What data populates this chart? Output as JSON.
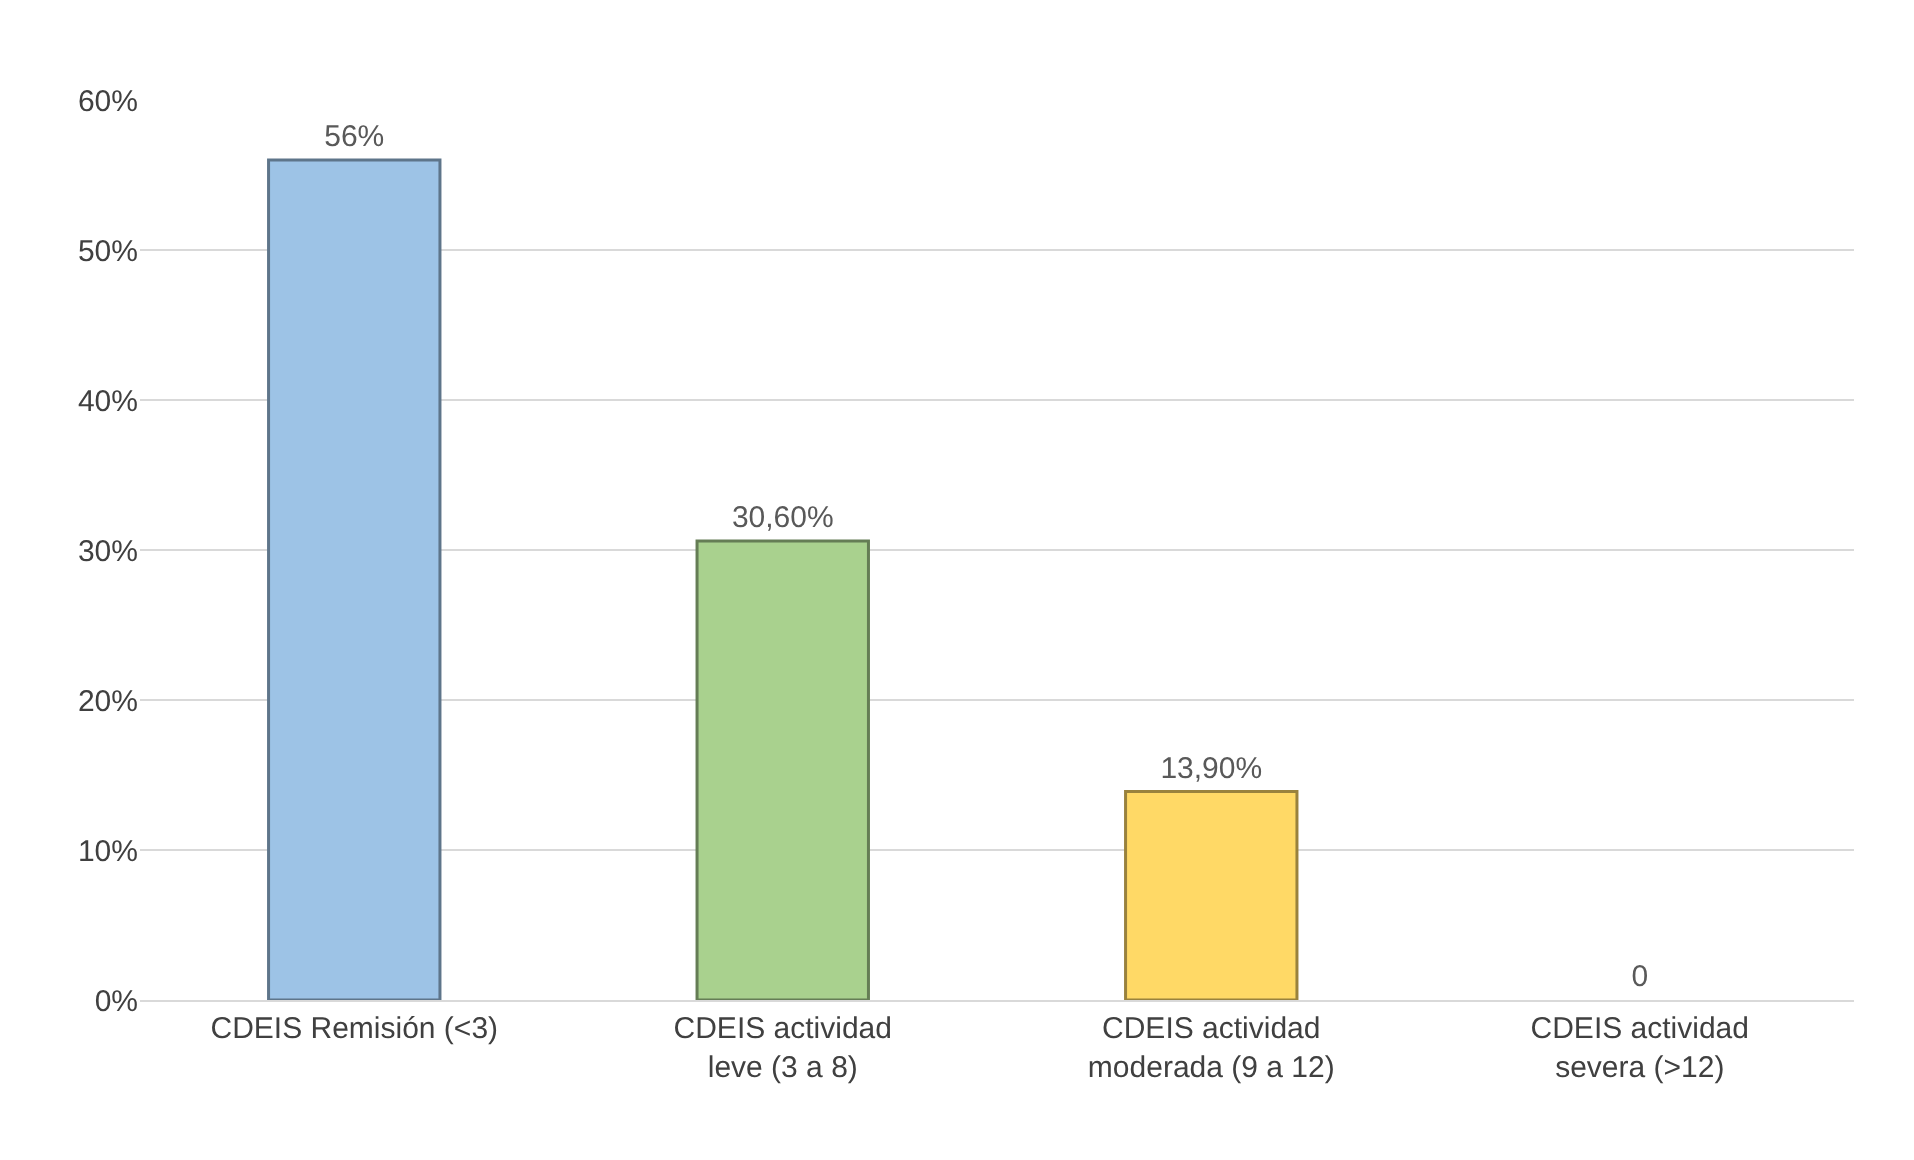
{
  "chart_data": {
    "type": "bar",
    "categories": [
      "CDEIS Remisión (<3)",
      "CDEIS actividad leve (3 a 8)",
      "CDEIS actividad moderada (9 a 12)",
      "CDEIS actividad severa (>12)"
    ],
    "values": [
      56,
      30.6,
      13.9,
      0
    ],
    "value_labels": [
      "56%",
      "30,60%",
      "13,90%",
      "0"
    ],
    "colors": [
      "#9dc3e6",
      "#a9d18e",
      "#ffd966",
      null
    ],
    "ylim": [
      0,
      60
    ],
    "yticks": [
      {
        "value": 0,
        "label": "0%"
      },
      {
        "value": 10,
        "label": "10%"
      },
      {
        "value": 20,
        "label": "20%"
      },
      {
        "value": 30,
        "label": "30%"
      },
      {
        "value": 40,
        "label": "40%"
      },
      {
        "value": 50,
        "label": "50%"
      },
      {
        "value": 60,
        "label": "60%"
      }
    ],
    "grid": "y"
  }
}
